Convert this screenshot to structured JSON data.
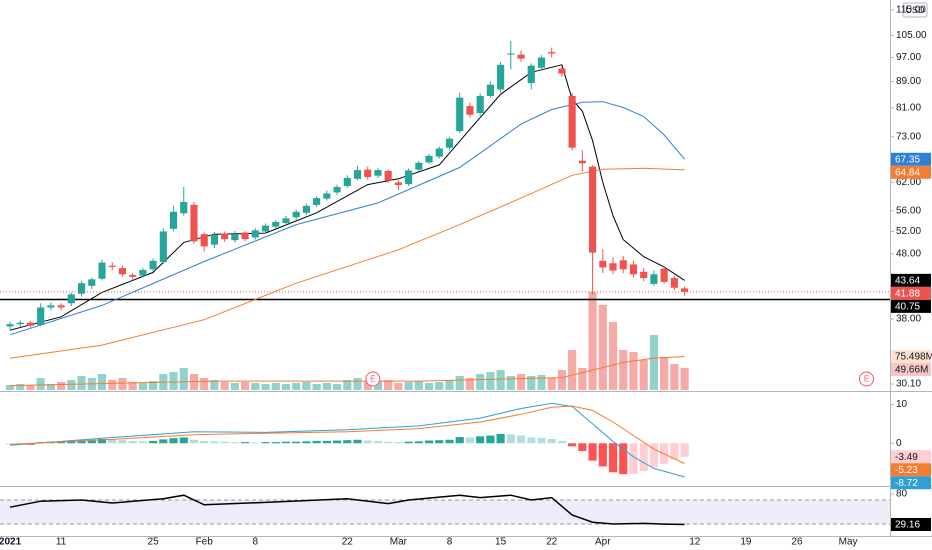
{
  "chart_data": [
    {
      "type": "candlestick",
      "currency": "USD",
      "log_scale": true,
      "x": [
        0,
        1,
        2,
        3,
        4,
        5,
        6,
        7,
        8,
        9,
        10,
        11,
        12,
        13,
        14,
        15,
        16,
        17,
        18,
        19,
        20,
        21,
        22,
        23,
        24,
        25,
        26,
        27,
        28,
        29,
        30,
        31,
        32,
        33,
        34,
        35,
        36,
        37,
        38,
        39,
        40,
        41,
        42,
        43,
        44,
        45,
        46,
        47,
        48,
        49,
        50,
        51,
        52,
        53,
        54,
        55,
        56,
        57,
        58,
        59,
        60,
        61,
        62,
        63,
        64,
        65,
        66
      ],
      "open": [
        37.0,
        37.3,
        37.5,
        37.2,
        39.6,
        39.9,
        40.2,
        41.6,
        42.8,
        43.9,
        46.0,
        45.6,
        44.5,
        44.4,
        45.4,
        46.6,
        52.5,
        55.5,
        57.2,
        51.5,
        49.6,
        51.6,
        50.4,
        51.8,
        50.9,
        52.0,
        52.9,
        53.6,
        54.7,
        55.6,
        57.2,
        58.5,
        59.8,
        61.2,
        62.8,
        64.9,
        63.5,
        64.6,
        62.0,
        61.6,
        64.9,
        66.6,
        68.0,
        70.2,
        74.5,
        81.5,
        79.5,
        84.5,
        86.5,
        98.0,
        98.0,
        88.5,
        93.5,
        98.9,
        93.2,
        84.5,
        67.0,
        65.6,
        46.8,
        46.4,
        46.9,
        46.2,
        45.0,
        43.1,
        45.5,
        44.0,
        42.4
      ],
      "high": [
        37.6,
        37.8,
        37.7,
        40.2,
        40.3,
        40.2,
        41.8,
        43.6,
        44.1,
        47.0,
        46.6,
        46.0,
        44.8,
        45.6,
        47.2,
        52.6,
        57.0,
        61.0,
        57.8,
        51.8,
        51.9,
        52.0,
        52.1,
        52.0,
        52.6,
        53.5,
        54.2,
        55.0,
        56.2,
        57.5,
        59.0,
        60.2,
        61.5,
        63.6,
        65.8,
        65.6,
        65.3,
        65.0,
        62.5,
        65.2,
        67.0,
        68.6,
        70.5,
        73.0,
        85.5,
        82.5,
        85.3,
        89.0,
        95.5,
        103.0,
        99.5,
        95.0,
        97.8,
        100.5,
        93.8,
        85.5,
        69.5,
        66.0,
        48.8,
        47.4,
        47.6,
        46.8,
        45.6,
        45.2,
        45.9,
        44.4,
        42.7
      ],
      "low": [
        36.6,
        36.9,
        36.8,
        37.0,
        39.2,
        39.2,
        39.8,
        41.2,
        42.3,
        43.6,
        45.2,
        44.2,
        43.8,
        44.1,
        45.0,
        46.3,
        52.0,
        55.0,
        49.8,
        48.4,
        49.0,
        50.1,
        50.0,
        50.2,
        50.5,
        51.6,
        52.5,
        53.2,
        54.2,
        55.2,
        56.8,
        58.1,
        59.3,
        60.8,
        62.5,
        62.6,
        63.0,
        61.9,
        60.3,
        61.2,
        64.5,
        66.2,
        67.5,
        69.6,
        74.0,
        78.2,
        78.8,
        84.0,
        85.5,
        93.0,
        95.5,
        86.5,
        92.8,
        97.0,
        90.5,
        69.5,
        64.5,
        41.5,
        44.8,
        44.6,
        44.8,
        44.1,
        43.5,
        42.8,
        43.1,
        42.1,
        41.3
      ],
      "close": [
        37.3,
        37.5,
        37.1,
        39.6,
        39.9,
        39.6,
        41.5,
        43.2,
        43.8,
        46.5,
        45.8,
        44.6,
        44.2,
        45.3,
        46.8,
        52.0,
        55.8,
        57.8,
        50.2,
        49.3,
        51.4,
        50.6,
        51.5,
        50.6,
        52.2,
        53.1,
        53.8,
        54.5,
        55.8,
        57.0,
        58.6,
        59.6,
        61.0,
        63.0,
        64.8,
        63.2,
        64.8,
        62.4,
        61.4,
        64.7,
        66.5,
        68.2,
        70.0,
        72.5,
        84.0,
        79.0,
        84.5,
        88.0,
        94.5,
        98.4,
        96.6,
        94.2,
        97.0,
        98.4,
        91.6,
        70.2,
        66.4,
        48.2,
        45.7,
        45.2,
        45.4,
        44.6,
        44.0,
        44.6,
        43.4,
        42.5,
        41.88
      ],
      "up_color": "#26a69a",
      "down_color": "#ef5350",
      "volume_up_color": "rgba(38,166,154,0.5)",
      "volume_down_color": "rgba(239,83,80,0.5)",
      "xlim": [
        -0.98,
        86.1
      ],
      "ylim": [
        29.46,
        119.2
      ],
      "y2lim": [
        0,
        880
      ],
      "yticks": [
        {
          "value": 115,
          "label": "115.00"
        },
        {
          "value": 105,
          "label": "105.00"
        },
        {
          "value": 97,
          "label": "97.00"
        },
        {
          "value": 89,
          "label": "89.00"
        },
        {
          "value": 81,
          "label": "81.00"
        },
        {
          "value": 73,
          "label": "73.00"
        },
        {
          "value": 62,
          "label": "62.00"
        },
        {
          "value": 56,
          "label": "56.00"
        },
        {
          "value": 52,
          "label": "52.00"
        },
        {
          "value": 48,
          "label": "48.00"
        },
        {
          "value": 38,
          "label": "38.00"
        },
        {
          "value": 30.1,
          "label": "30.10"
        }
      ],
      "xticks": [
        {
          "value": 0,
          "label": "2021"
        },
        {
          "value": 5,
          "label": "11"
        },
        {
          "value": 14,
          "label": "25"
        },
        {
          "value": 19,
          "label": "Feb"
        },
        {
          "value": 24,
          "label": "8"
        },
        {
          "value": 33,
          "label": "22"
        },
        {
          "value": 38,
          "label": "Mar"
        },
        {
          "value": 43,
          "label": "8"
        },
        {
          "value": 48,
          "label": "15"
        },
        {
          "value": 53,
          "label": "22"
        },
        {
          "value": 58,
          "label": "Apr"
        },
        {
          "value": 67,
          "label": "12"
        },
        {
          "value": 72,
          "label": "19"
        },
        {
          "value": 77,
          "label": "26"
        },
        {
          "value": 82,
          "label": "May"
        }
      ],
      "lines": [
        {
          "color": "#000000",
          "x": [
            0,
            5,
            9,
            14,
            17,
            20,
            25,
            30,
            35,
            38,
            42,
            45,
            48,
            51,
            54,
            55,
            56,
            57,
            58,
            59,
            60,
            62,
            64,
            66
          ],
          "values": [
            36.5,
            38.3,
            41.8,
            44.9,
            50.0,
            51.5,
            51.7,
            55.6,
            61.5,
            62.8,
            66.0,
            75.0,
            85.0,
            92.0,
            94.5,
            83.5,
            80.0,
            72.0,
            62.0,
            55.0,
            50.5,
            47.5,
            45.8,
            43.64
          ]
        },
        {
          "color": "#2f7fd6",
          "x": [
            0,
            9,
            19,
            28,
            36,
            44,
            50,
            53,
            56,
            58,
            60,
            62,
            64,
            66
          ],
          "values": [
            35.9,
            39.9,
            46.7,
            53.3,
            57.6,
            65.4,
            76.4,
            80.5,
            82.6,
            82.8,
            81.1,
            78.5,
            73.5,
            67.35
          ]
        },
        {
          "color": "#f57c32",
          "x": [
            0,
            9,
            19,
            28,
            38,
            44,
            50,
            55,
            58,
            62,
            66
          ],
          "values": [
            33.0,
            34.6,
            37.9,
            43.2,
            48.7,
            53.3,
            58.6,
            63.6,
            65.0,
            65.2,
            64.84
          ]
        }
      ],
      "hline": {
        "value": 40.75,
        "color": "#000000"
      },
      "volume": [
        11.3,
        13.5,
        11.3,
        27.1,
        13.5,
        18.1,
        22.6,
        31.6,
        27.1,
        36.1,
        22.6,
        27.1,
        18.1,
        15.8,
        20.3,
        36.1,
        40.6,
        49.7,
        36.1,
        27.1,
        22.6,
        18.1,
        15.8,
        18.1,
        15.8,
        13.5,
        15.8,
        13.5,
        15.8,
        18.1,
        13.5,
        15.8,
        13.5,
        22.6,
        27.1,
        18.1,
        20.3,
        22.6,
        15.8,
        18.1,
        20.3,
        15.8,
        18.1,
        22.6,
        31.6,
        27.1,
        36.1,
        40.6,
        45.1,
        31.6,
        36.1,
        31.6,
        33.9,
        27.1,
        45.1,
        90.3,
        49.7,
        221.2,
        191.8,
        153.5,
        90.3,
        85.8,
        67.7,
        124.1,
        74.5,
        58.7,
        49.66
      ],
      "volume_value_labels": [
        null,
        null,
        null,
        null,
        null,
        null,
        null,
        null,
        null,
        null,
        null,
        null,
        null,
        null,
        null,
        null,
        null,
        null,
        null,
        null,
        null,
        null,
        null,
        null,
        null,
        null,
        null,
        null,
        null,
        null,
        null,
        null,
        null,
        null,
        null,
        null,
        null,
        null,
        null,
        null,
        null,
        null,
        null,
        null,
        null,
        null,
        null,
        null,
        null,
        null,
        null,
        null,
        null,
        null,
        null,
        null,
        null,
        null,
        null,
        null,
        null,
        null,
        null,
        null,
        null,
        null,
        "49.66M"
      ],
      "volume_ma": {
        "color": "#f57c32",
        "x": [
          0,
          20,
          40,
          54,
          57,
          60,
          63,
          66
        ],
        "values": [
          10,
          20,
          20,
          28,
          45,
          62,
          72,
          75.498
        ],
        "value_labels": [
          null,
          null,
          null,
          null,
          null,
          null,
          null,
          "75.498M"
        ]
      },
      "events": [
        {
          "x": 35.5,
          "label": "E"
        },
        {
          "x": 83.8,
          "label": "E"
        }
      ]
    },
    {
      "type": "macd",
      "ylim": [
        -10.8,
        13
      ],
      "yticks": [
        10,
        0
      ],
      "histogram": [
        -0.3,
        -0.2,
        -0.4,
        0.3,
        0.4,
        0.5,
        0.6,
        0.8,
        0.9,
        1.1,
        1.0,
        0.8,
        0.6,
        0.5,
        0.6,
        1.0,
        1.3,
        1.5,
        0.9,
        0.6,
        0.5,
        0.4,
        0.3,
        0.3,
        0.2,
        0.3,
        0.3,
        0.4,
        0.4,
        0.5,
        0.6,
        0.6,
        0.7,
        0.8,
        0.9,
        0.7,
        0.6,
        0.4,
        0.3,
        0.4,
        0.5,
        0.7,
        0.8,
        0.9,
        1.6,
        1.5,
        1.8,
        2.0,
        2.4,
        2.3,
        2.0,
        1.5,
        1.4,
        1.1,
        0.6,
        -0.8,
        -2.0,
        -4.5,
        -6.0,
        -7.5,
        -8.0,
        -8.0,
        -7.2,
        -6.2,
        -5.3,
        -4.2,
        -3.49
      ],
      "histogram_colors": [
        "#26a69a",
        "#b2dfdb",
        "#ff5252",
        "#ffcdd2"
      ],
      "lines": [
        {
          "color": "#2f9fd6",
          "x": [
            0,
            10,
            18,
            25,
            33,
            40,
            46,
            50,
            53,
            55,
            57,
            59,
            61,
            63,
            66
          ],
          "values": [
            -0.5,
            1.5,
            3.0,
            2.8,
            3.5,
            4.5,
            6.5,
            9.0,
            10.3,
            9.5,
            5.0,
            0.5,
            -3.5,
            -6.5,
            -8.72
          ]
        },
        {
          "color": "#f57c32",
          "x": [
            0,
            10,
            18,
            25,
            33,
            40,
            46,
            50,
            53,
            55,
            57,
            59,
            61,
            63,
            66
          ],
          "values": [
            -0.3,
            1.0,
            2.2,
            2.6,
            3.0,
            3.8,
            5.5,
            7.5,
            9.3,
            9.6,
            8.5,
            5.5,
            2.0,
            -1.5,
            -5.23
          ]
        }
      ]
    },
    {
      "type": "rsi",
      "ylim": [
        10,
        90
      ],
      "yticks": [
        80
      ],
      "band": [
        30,
        70
      ],
      "band_color": "rgba(126,87,194,0.12)",
      "color": "#000000",
      "x": [
        0,
        3,
        7,
        10,
        15,
        17,
        19,
        25,
        33,
        37,
        39,
        44,
        46,
        49,
        51,
        53,
        55,
        57,
        59,
        62,
        64,
        66
      ],
      "values": [
        58,
        68,
        70,
        65,
        72,
        78,
        62,
        66,
        72,
        64,
        70,
        78,
        74,
        78,
        70,
        74,
        45,
        33,
        30,
        31,
        29.8,
        29.16
      ]
    }
  ]
}
